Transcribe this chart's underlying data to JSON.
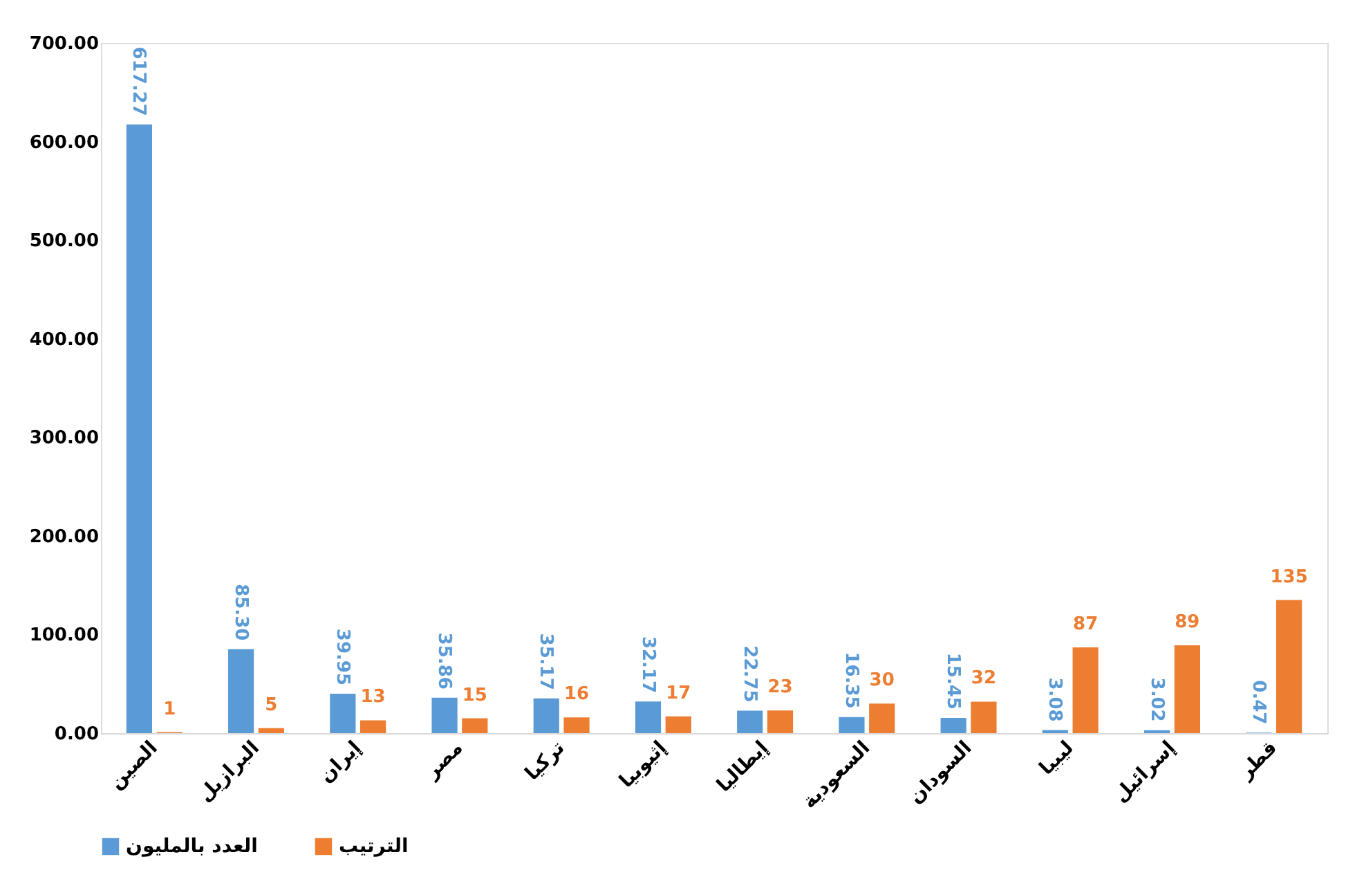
{
  "chart_data": {
    "type": "bar",
    "categories": [
      "الصين",
      "البرازيل",
      "إيران",
      "مصر",
      "تركيا",
      "إثيوبيا",
      "إيطاليا",
      "السعودية",
      "السودان",
      "ليبيا",
      "إسرائيل",
      "قطر"
    ],
    "series": [
      {
        "name": "العدد بالمليون",
        "color": "#5b9bd5",
        "values": [
          617.27,
          85.3,
          39.95,
          35.86,
          35.17,
          32.17,
          22.75,
          16.35,
          15.45,
          3.08,
          3.02,
          0.47
        ],
        "value_labels": [
          "617.27",
          "85.30",
          "39.95",
          "35.86",
          "35.17",
          "32.17",
          "22.75",
          "16.35",
          "15.45",
          "3.08",
          "3.02",
          "0.47"
        ]
      },
      {
        "name": "الترتيب",
        "color": "#ed7d31",
        "values": [
          1,
          5,
          13,
          15,
          16,
          17,
          23,
          30,
          32,
          87,
          89,
          135
        ],
        "value_labels": [
          "1",
          "5",
          "13",
          "15",
          "16",
          "17",
          "23",
          "30",
          "32",
          "87",
          "89",
          "135"
        ]
      }
    ],
    "ylim": [
      0,
      700
    ],
    "yticks": [
      {
        "value": 0,
        "label": "0.00"
      },
      {
        "value": 100,
        "label": "100.00"
      },
      {
        "value": 200,
        "label": "200.00"
      },
      {
        "value": 300,
        "label": "300.00"
      },
      {
        "value": 400,
        "label": "400.00"
      },
      {
        "value": 500,
        "label": "500.00"
      },
      {
        "value": 600,
        "label": "600.00"
      },
      {
        "value": 700,
        "label": "700.00"
      }
    ],
    "grid": false,
    "legend": "bottom"
  }
}
